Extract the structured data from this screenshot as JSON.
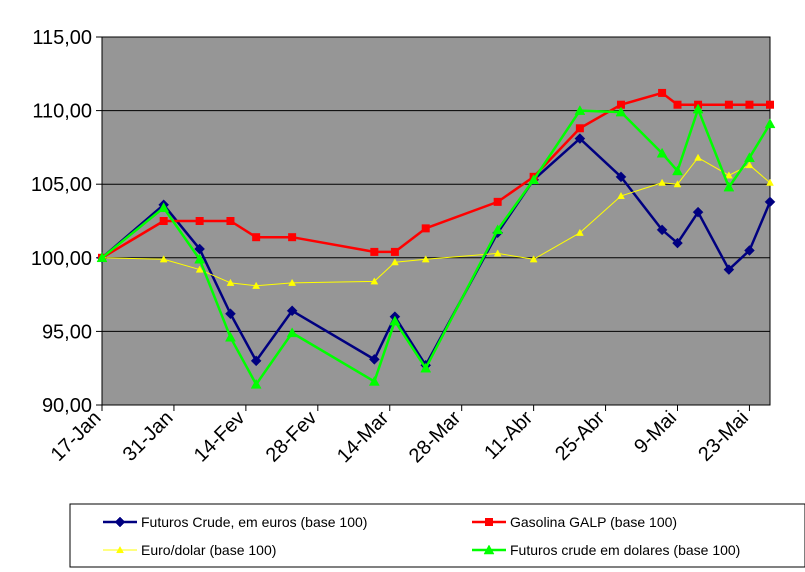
{
  "chart_data": {
    "type": "line",
    "title": "",
    "xlabel": "",
    "ylabel": "",
    "ylim": [
      90,
      115
    ],
    "yticks": [
      90,
      95,
      100,
      105,
      110,
      115
    ],
    "ytick_labels": [
      "90,00",
      "95,00",
      "100,00",
      "105,00",
      "110,00",
      "115,00"
    ],
    "x_tick_labels": [
      "17-Jan",
      "31-Jan",
      "14-Fev",
      "28-Fev",
      "14-Mar",
      "28-Mar",
      "11-Abr",
      "25-Abr",
      "9-Mai",
      "23-Mai"
    ],
    "x_tick_days": [
      0,
      14,
      28,
      42,
      56,
      70,
      84,
      98,
      112,
      126
    ],
    "x_range_days": [
      0,
      130
    ],
    "grid": "horizontal",
    "plot_background": "#969696",
    "legend_position": "bottom",
    "series": [
      {
        "name": "Futuros Crude, em euros (base 100)",
        "color": "#000080",
        "marker": "diamond",
        "x": [
          0,
          12,
          19,
          25,
          30,
          37,
          53,
          57,
          63,
          77,
          84,
          93,
          101,
          109,
          112,
          116,
          122,
          126,
          130
        ],
        "y": [
          100.0,
          103.6,
          100.6,
          96.2,
          93.0,
          96.4,
          93.1,
          96.0,
          92.7,
          101.7,
          105.3,
          108.1,
          105.5,
          101.9,
          101.0,
          103.1,
          99.2,
          100.5,
          103.8
        ]
      },
      {
        "name": "Gasolina GALP (base 100)",
        "color": "#ff0000",
        "marker": "square",
        "x": [
          0,
          12,
          19,
          25,
          30,
          37,
          53,
          57,
          63,
          77,
          84,
          93,
          101,
          109,
          112,
          116,
          122,
          126,
          130
        ],
        "y": [
          100.0,
          102.5,
          102.5,
          102.5,
          101.4,
          101.4,
          100.4,
          100.4,
          102.0,
          103.8,
          105.5,
          108.8,
          110.4,
          111.2,
          110.4,
          110.4,
          110.4,
          110.4,
          110.4
        ]
      },
      {
        "name": "Euro/dolar (base 100)",
        "color": "#ffff00",
        "marker": "triangle",
        "x": [
          0,
          12,
          19,
          25,
          30,
          37,
          53,
          57,
          63,
          77,
          84,
          93,
          101,
          109,
          112,
          116,
          122,
          126,
          130
        ],
        "y": [
          100.0,
          99.9,
          99.2,
          98.3,
          98.1,
          98.3,
          98.4,
          99.7,
          99.9,
          100.3,
          99.9,
          101.7,
          104.2,
          105.1,
          105.0,
          106.8,
          105.6,
          106.3,
          105.1
        ]
      },
      {
        "name": "Futuros crude em dolares (base 100)",
        "color": "#00ff00",
        "marker": "triangle",
        "x": [
          0,
          12,
          19,
          25,
          30,
          37,
          53,
          57,
          63,
          77,
          84,
          93,
          101,
          109,
          112,
          116,
          122,
          126,
          130
        ],
        "y": [
          100.0,
          103.4,
          99.9,
          94.6,
          91.4,
          94.9,
          91.6,
          95.7,
          92.5,
          101.9,
          105.3,
          110.0,
          109.9,
          107.1,
          105.9,
          110.1,
          104.8,
          106.8,
          109.1
        ]
      }
    ]
  }
}
